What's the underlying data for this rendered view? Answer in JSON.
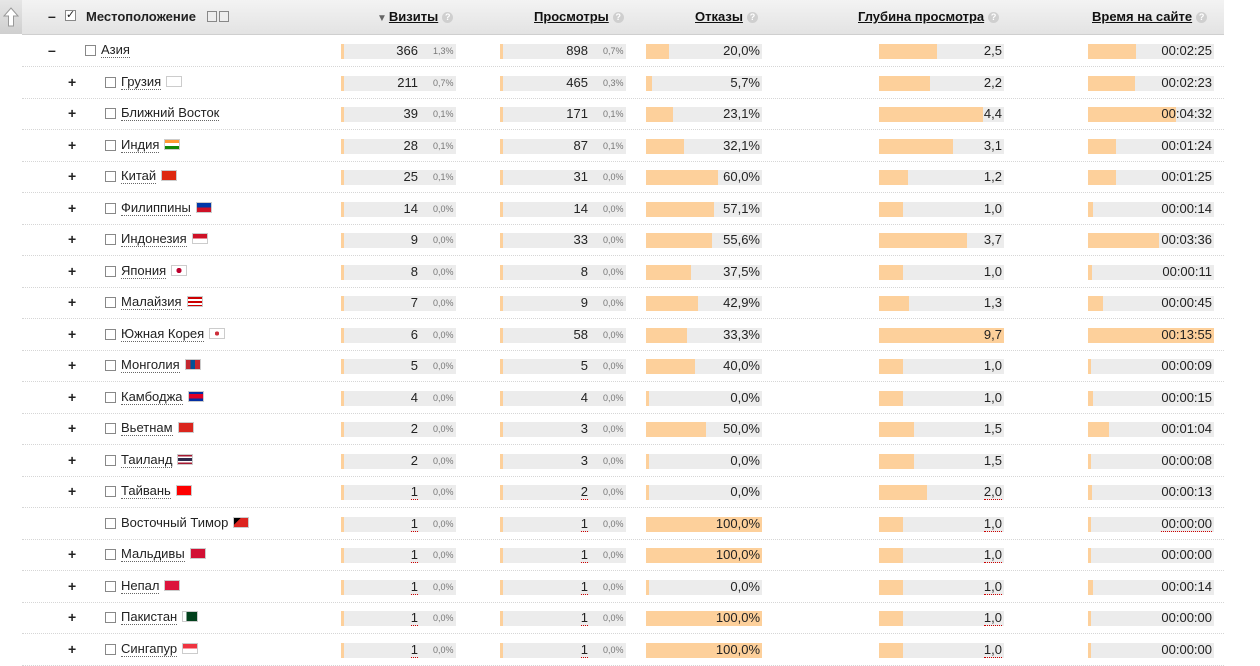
{
  "header": {
    "location": "Местоположение",
    "visits": "Визиты",
    "views": "Просмотры",
    "bounces": "Отказы",
    "depth": "Глубина просмотра",
    "time": "Время на сайте",
    "help": "?",
    "sort_arrow": "▼"
  },
  "colors": {
    "bar_fill": "#fdd09b",
    "bar_bg": "#ececec"
  },
  "rows": [
    {
      "name": "Азия",
      "flag": "",
      "visits": "366",
      "visits_pct": "1,3%",
      "visits_frac": 0.02,
      "views": "898",
      "views_pct": "0,7%",
      "views_frac": 0.02,
      "bounce": "20,0%",
      "bounce_frac": 0.2,
      "depth": "2,5",
      "depth_frac": 0.46,
      "time": "00:02:25",
      "time_frac": 0.38
    },
    {
      "name": "Грузия",
      "flag": "ge",
      "visits": "211",
      "visits_pct": "0,7%",
      "visits_frac": 0.02,
      "views": "465",
      "views_pct": "0,3%",
      "views_frac": 0.02,
      "bounce": "5,7%",
      "bounce_frac": 0.05,
      "depth": "2,2",
      "depth_frac": 0.41,
      "time": "00:02:23",
      "time_frac": 0.37
    },
    {
      "name": "Ближний Восток",
      "flag": "",
      "visits": "39",
      "visits_pct": "0,1%",
      "visits_frac": 0.02,
      "views": "171",
      "views_pct": "0,1%",
      "views_frac": 0.02,
      "bounce": "23,1%",
      "bounce_frac": 0.23,
      "depth": "4,4",
      "depth_frac": 0.83,
      "time": "00:04:32",
      "time_frac": 0.7
    },
    {
      "name": "Индия",
      "flag": "in",
      "visits": "28",
      "visits_pct": "0,1%",
      "visits_frac": 0.02,
      "views": "87",
      "views_pct": "0,1%",
      "views_frac": 0.02,
      "bounce": "32,1%",
      "bounce_frac": 0.33,
      "depth": "3,1",
      "depth_frac": 0.59,
      "time": "00:01:24",
      "time_frac": 0.22
    },
    {
      "name": "Китай",
      "flag": "cn",
      "visits": "25",
      "visits_pct": "0,1%",
      "visits_frac": 0.02,
      "views": "31",
      "views_pct": "0,0%",
      "views_frac": 0.02,
      "bounce": "60,0%",
      "bounce_frac": 0.62,
      "depth": "1,2",
      "depth_frac": 0.23,
      "time": "00:01:25",
      "time_frac": 0.22
    },
    {
      "name": "Филиппины",
      "flag": "ph",
      "visits": "14",
      "visits_pct": "0,0%",
      "visits_frac": 0.02,
      "views": "14",
      "views_pct": "0,0%",
      "views_frac": 0.02,
      "bounce": "57,1%",
      "bounce_frac": 0.59,
      "depth": "1,0",
      "depth_frac": 0.19,
      "time": "00:00:14",
      "time_frac": 0.04
    },
    {
      "name": "Индонезия",
      "flag": "id",
      "visits": "9",
      "visits_pct": "0,0%",
      "visits_frac": 0.02,
      "views": "33",
      "views_pct": "0,0%",
      "views_frac": 0.02,
      "bounce": "55,6%",
      "bounce_frac": 0.57,
      "depth": "3,7",
      "depth_frac": 0.7,
      "time": "00:03:36",
      "time_frac": 0.56
    },
    {
      "name": "Япония",
      "flag": "jp",
      "visits": "8",
      "visits_pct": "0,0%",
      "visits_frac": 0.02,
      "views": "8",
      "views_pct": "0,0%",
      "views_frac": 0.02,
      "bounce": "37,5%",
      "bounce_frac": 0.39,
      "depth": "1,0",
      "depth_frac": 0.19,
      "time": "00:00:11",
      "time_frac": 0.03
    },
    {
      "name": "Малайзия",
      "flag": "my",
      "visits": "7",
      "visits_pct": "0,0%",
      "visits_frac": 0.02,
      "views": "9",
      "views_pct": "0,0%",
      "views_frac": 0.02,
      "bounce": "42,9%",
      "bounce_frac": 0.45,
      "depth": "1,3",
      "depth_frac": 0.24,
      "time": "00:00:45",
      "time_frac": 0.12
    },
    {
      "name": "Южная Корея",
      "flag": "kr",
      "visits": "6",
      "visits_pct": "0,0%",
      "visits_frac": 0.02,
      "views": "58",
      "views_pct": "0,0%",
      "views_frac": 0.02,
      "bounce": "33,3%",
      "bounce_frac": 0.35,
      "depth": "9,7",
      "depth_frac": 1.0,
      "time": "00:13:55",
      "time_frac": 1.0
    },
    {
      "name": "Монголия",
      "flag": "mn",
      "visits": "5",
      "visits_pct": "0,0%",
      "visits_frac": 0.02,
      "views": "5",
      "views_pct": "0,0%",
      "views_frac": 0.02,
      "bounce": "40,0%",
      "bounce_frac": 0.42,
      "depth": "1,0",
      "depth_frac": 0.19,
      "time": "00:00:09",
      "time_frac": 0.02
    },
    {
      "name": "Камбоджа",
      "flag": "kh",
      "visits": "4",
      "visits_pct": "0,0%",
      "visits_frac": 0.02,
      "views": "4",
      "views_pct": "0,0%",
      "views_frac": 0.02,
      "bounce": "0,0%",
      "bounce_frac": 0.01,
      "depth": "1,0",
      "depth_frac": 0.19,
      "time": "00:00:15",
      "time_frac": 0.04
    },
    {
      "name": "Вьетнам",
      "flag": "vn",
      "visits": "2",
      "visits_pct": "0,0%",
      "visits_frac": 0.02,
      "views": "3",
      "views_pct": "0,0%",
      "views_frac": 0.02,
      "bounce": "50,0%",
      "bounce_frac": 0.52,
      "depth": "1,5",
      "depth_frac": 0.28,
      "time": "00:01:04",
      "time_frac": 0.17
    },
    {
      "name": "Таиланд",
      "flag": "th",
      "visits": "2",
      "visits_pct": "0,0%",
      "visits_frac": 0.02,
      "views": "3",
      "views_pct": "0,0%",
      "views_frac": 0.02,
      "bounce": "0,0%",
      "bounce_frac": 0.01,
      "depth": "1,5",
      "depth_frac": 0.28,
      "time": "00:00:08",
      "time_frac": 0.02
    },
    {
      "name": "Тайвань",
      "flag": "tw",
      "visits": "1",
      "visits_pct": "0,0%",
      "visits_frac": 0.02,
      "views": "2",
      "views_pct": "0,0%",
      "views_frac": 0.02,
      "bounce": "0,0%",
      "bounce_frac": 0.01,
      "depth": "2,0",
      "depth_frac": 0.38,
      "time": "00:00:13",
      "time_frac": 0.03
    },
    {
      "name": "Восточный Тимор",
      "flag": "tl",
      "visits": "1",
      "visits_pct": "0,0%",
      "visits_frac": 0.02,
      "views": "1",
      "views_pct": "0,0%",
      "views_frac": 0.02,
      "bounce": "100,0%",
      "bounce_frac": 1.0,
      "depth": "1,0",
      "depth_frac": 0.19,
      "time": "00:00:00",
      "time_frac": 0.01
    },
    {
      "name": "Мальдивы",
      "flag": "mv",
      "visits": "1",
      "visits_pct": "0,0%",
      "visits_frac": 0.02,
      "views": "1",
      "views_pct": "0,0%",
      "views_frac": 0.02,
      "bounce": "100,0%",
      "bounce_frac": 1.0,
      "depth": "1,0",
      "depth_frac": 0.19,
      "time": "00:00:00",
      "time_frac": 0.01
    },
    {
      "name": "Непал",
      "flag": "np",
      "visits": "1",
      "visits_pct": "0,0%",
      "visits_frac": 0.02,
      "views": "1",
      "views_pct": "0,0%",
      "views_frac": 0.02,
      "bounce": "0,0%",
      "bounce_frac": 0.01,
      "depth": "1,0",
      "depth_frac": 0.19,
      "time": "00:00:14",
      "time_frac": 0.04
    },
    {
      "name": "Пакистан",
      "flag": "pk",
      "visits": "1",
      "visits_pct": "0,0%",
      "visits_frac": 0.02,
      "views": "1",
      "views_pct": "0,0%",
      "views_frac": 0.02,
      "bounce": "100,0%",
      "bounce_frac": 1.0,
      "depth": "1,0",
      "depth_frac": 0.19,
      "time": "00:00:00",
      "time_frac": 0.01
    },
    {
      "name": "Сингапур",
      "flag": "sg",
      "visits": "1",
      "visits_pct": "0,0%",
      "visits_frac": 0.02,
      "views": "1",
      "views_pct": "0,0%",
      "views_frac": 0.02,
      "bounce": "100,0%",
      "bounce_frac": 1.0,
      "depth": "1,0",
      "depth_frac": 0.19,
      "time": "00:00:00",
      "time_frac": 0.01
    }
  ]
}
